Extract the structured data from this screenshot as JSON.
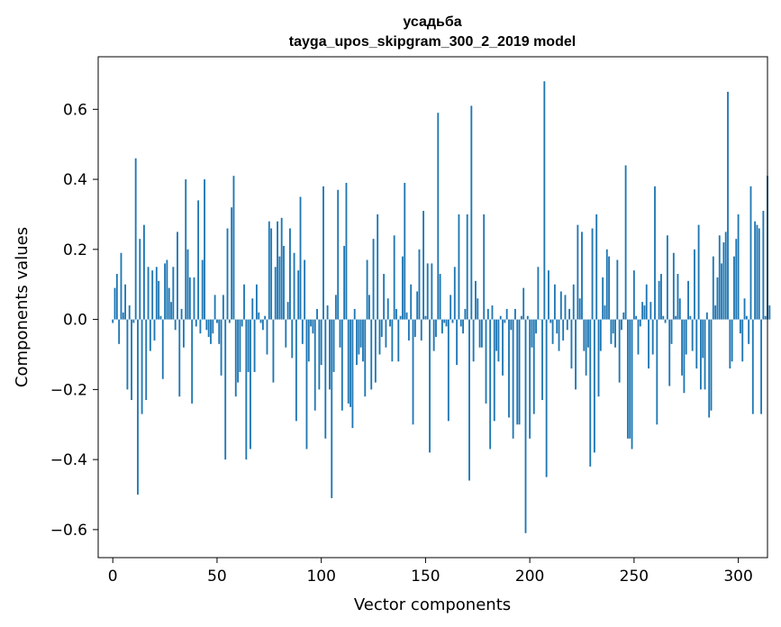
{
  "chart_data": {
    "type": "bar",
    "title_line1": "усадьба",
    "title_line2": "tayga_upos_skipgram_300_2_2019 model",
    "xlabel": "Vector components",
    "ylabel": "Components values",
    "xlim": [
      -7,
      314
    ],
    "ylim": [
      -0.68,
      0.75
    ],
    "xticks": [
      0,
      50,
      100,
      150,
      200,
      250,
      300
    ],
    "xtick_labels": [
      "0",
      "50",
      "100",
      "150",
      "200",
      "250",
      "300"
    ],
    "yticks": [
      -0.6,
      -0.4,
      -0.2,
      0.0,
      0.2,
      0.4,
      0.6
    ],
    "ytick_labels": [
      "−0.6",
      "−0.4",
      "−0.2",
      "0.0",
      "0.2",
      "0.4",
      "0.6"
    ],
    "bar_color": "#1f77b4",
    "values": [
      -0.01,
      0.09,
      0.13,
      -0.07,
      0.19,
      0.02,
      0.1,
      -0.2,
      0.04,
      -0.23,
      -0.01,
      0.46,
      -0.5,
      0.23,
      -0.27,
      0.27,
      -0.23,
      0.15,
      -0.09,
      0.14,
      -0.06,
      0.15,
      0.11,
      0.01,
      -0.17,
      0.16,
      0.17,
      0.09,
      0.05,
      0.15,
      -0.03,
      0.25,
      -0.22,
      0.03,
      -0.08,
      0.4,
      0.2,
      0.12,
      -0.24,
      0.12,
      -0.02,
      0.34,
      -0.04,
      0.17,
      0.4,
      -0.03,
      -0.05,
      -0.07,
      -0.04,
      0.07,
      -0.01,
      -0.07,
      -0.16,
      0.07,
      -0.4,
      0.26,
      -0.01,
      0.32,
      0.41,
      -0.22,
      -0.18,
      -0.15,
      -0.02,
      0.1,
      -0.4,
      -0.15,
      -0.37,
      0.06,
      -0.15,
      0.1,
      0.02,
      -0.01,
      -0.03,
      0.01,
      -0.1,
      0.28,
      0.26,
      -0.18,
      0.15,
      0.28,
      0.18,
      0.29,
      0.21,
      -0.08,
      0.05,
      0.26,
      -0.11,
      0.19,
      -0.29,
      0.14,
      0.35,
      -0.07,
      0.17,
      -0.37,
      -0.12,
      -0.02,
      -0.04,
      -0.26,
      0.03,
      -0.2,
      -0.13,
      0.38,
      -0.34,
      0.04,
      -0.2,
      -0.51,
      -0.15,
      0.07,
      0.37,
      -0.08,
      -0.26,
      0.21,
      0.39,
      -0.24,
      -0.25,
      -0.31,
      0.03,
      -0.13,
      -0.1,
      -0.08,
      -0.12,
      -0.22,
      0.17,
      0.07,
      -0.2,
      0.23,
      -0.18,
      0.3,
      -0.1,
      -0.05,
      0.13,
      -0.08,
      0.06,
      -0.02,
      -0.12,
      0.24,
      0.03,
      -0.12,
      0.01,
      0.18,
      0.39,
      0.02,
      -0.06,
      0.1,
      -0.3,
      -0.05,
      0.08,
      0.2,
      -0.06,
      0.31,
      0.01,
      0.16,
      -0.38,
      0.16,
      -0.09,
      -0.05,
      0.59,
      0.13,
      -0.04,
      -0.01,
      -0.02,
      -0.29,
      0.07,
      -0.01,
      0.15,
      -0.13,
      0.3,
      -0.02,
      -0.04,
      0.03,
      0.3,
      -0.46,
      0.61,
      -0.12,
      0.11,
      0.06,
      -0.08,
      -0.08,
      0.3,
      -0.24,
      0.03,
      -0.37,
      0.04,
      -0.29,
      -0.09,
      -0.12,
      0.01,
      -0.16,
      -0.01,
      0.03,
      -0.28,
      -0.03,
      -0.34,
      0.03,
      -0.3,
      -0.3,
      0.01,
      0.09,
      -0.61,
      0.01,
      -0.34,
      -0.08,
      -0.27,
      -0.04,
      0.15,
      0.0,
      -0.23,
      0.68,
      -0.45,
      0.14,
      -0.01,
      -0.07,
      0.1,
      -0.04,
      -0.09,
      0.08,
      -0.06,
      0.07,
      -0.03,
      0.03,
      -0.14,
      0.1,
      -0.2,
      0.27,
      0.06,
      0.25,
      -0.09,
      -0.16,
      -0.08,
      -0.42,
      0.26,
      -0.38,
      0.3,
      -0.22,
      -0.09,
      0.12,
      0.04,
      0.2,
      0.18,
      -0.07,
      -0.04,
      -0.08,
      0.17,
      -0.18,
      -0.03,
      0.02,
      0.44,
      -0.34,
      -0.34,
      -0.37,
      0.14,
      0.01,
      -0.1,
      -0.02,
      0.05,
      0.04,
      0.1,
      -0.14,
      0.05,
      -0.1,
      0.38,
      -0.3,
      0.11,
      0.13,
      0.01,
      -0.01,
      0.24,
      -0.19,
      -0.07,
      0.19,
      0.01,
      0.13,
      0.06,
      -0.16,
      -0.21,
      -0.1,
      0.11,
      0.01,
      -0.09,
      0.2,
      -0.14,
      0.27,
      -0.2,
      -0.11,
      -0.2,
      0.02,
      -0.28,
      -0.26,
      0.18,
      0.04,
      0.12,
      0.24,
      0.16,
      0.22,
      0.25,
      0.65,
      -0.14,
      -0.12,
      0.18,
      0.23,
      0.3,
      -0.04,
      -0.12,
      0.06,
      0.01,
      -0.07,
      0.38,
      -0.27,
      0.28,
      0.27,
      0.26,
      -0.27,
      0.31,
      0.01,
      0.41,
      0.04
    ]
  }
}
